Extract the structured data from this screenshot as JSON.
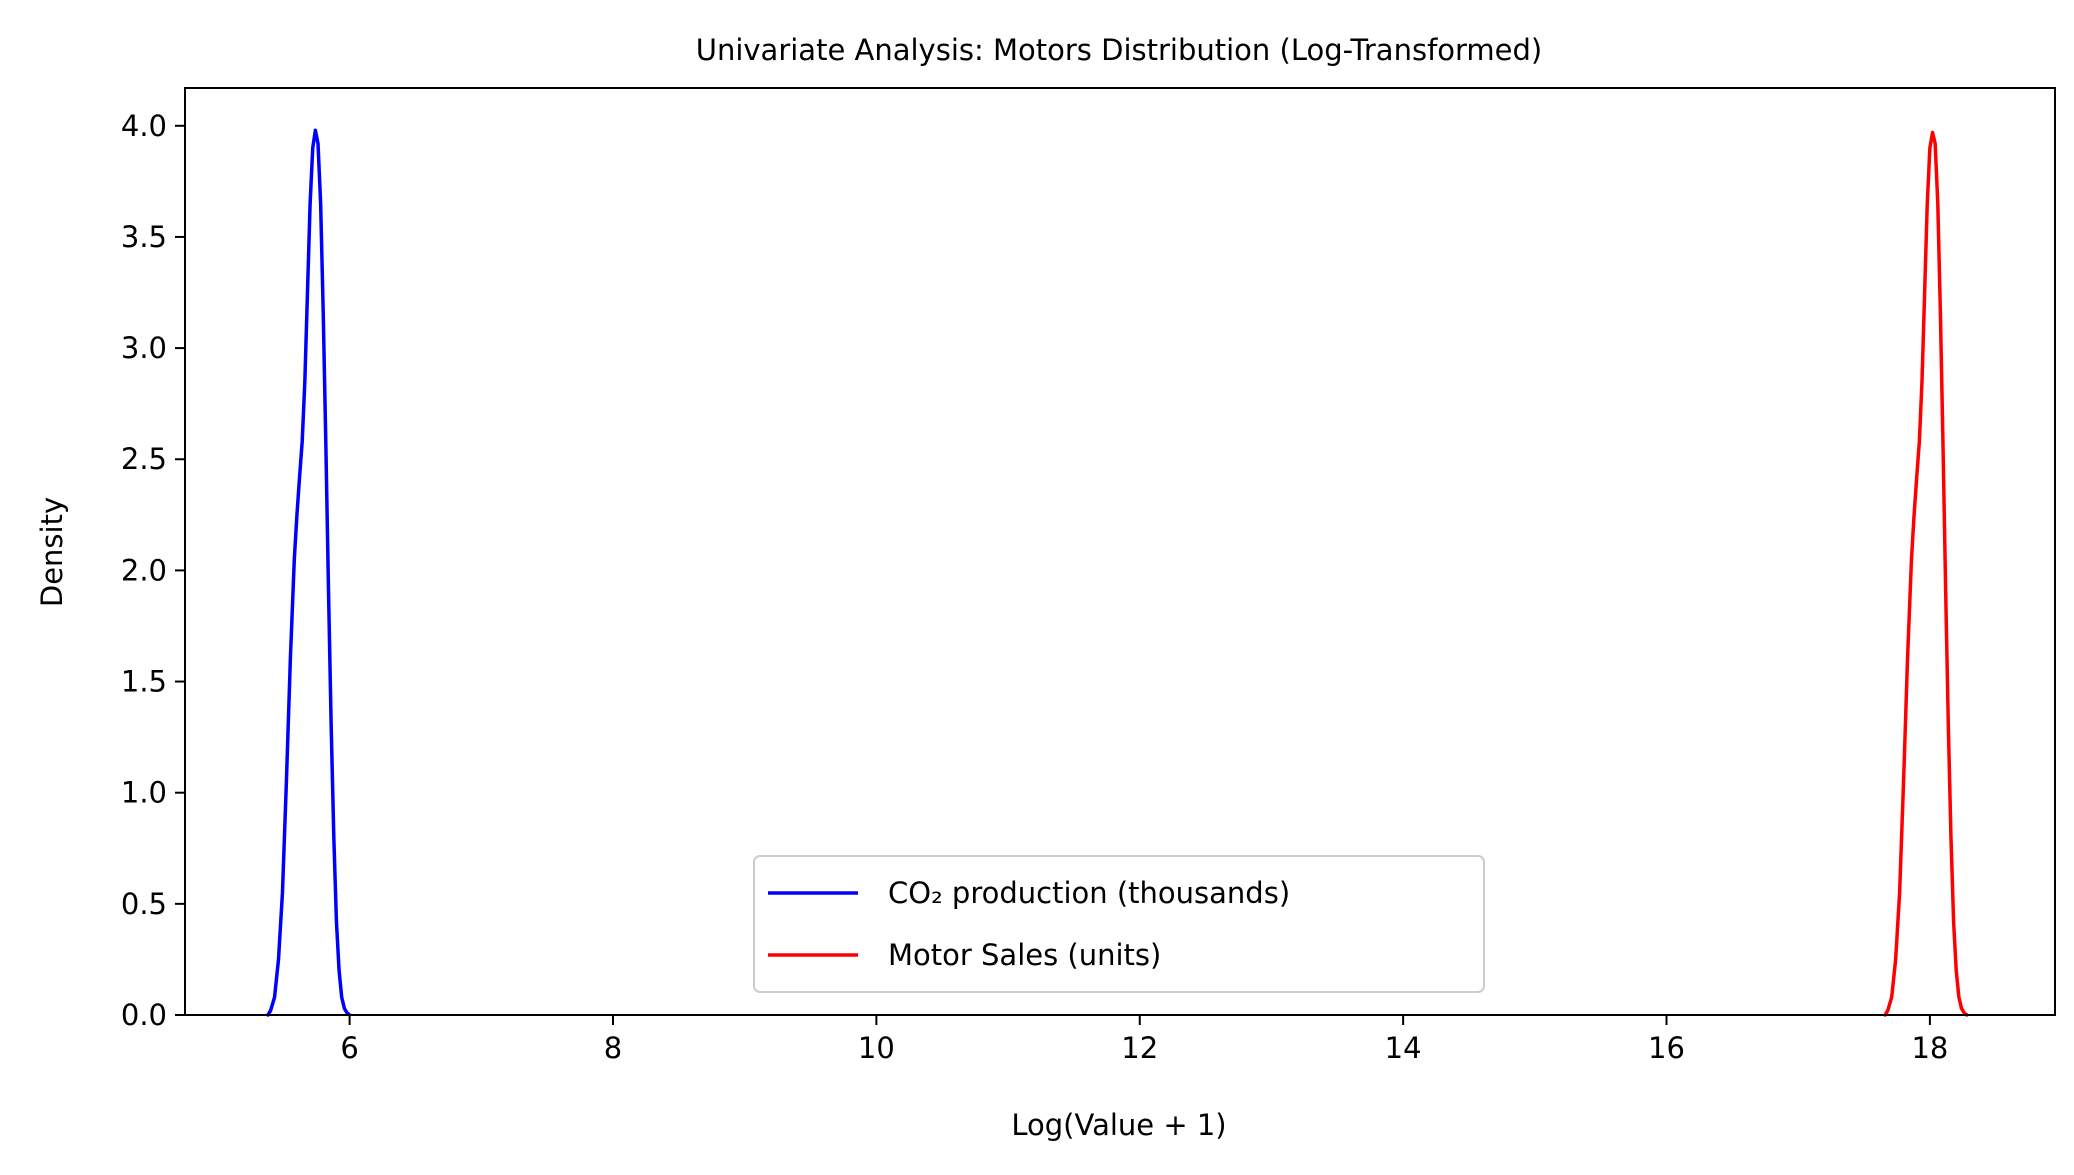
{
  "chart_data": {
    "type": "line",
    "title": "Univariate Analysis: Motors Distribution (Log-Transformed)",
    "xlabel": "Log(Value + 1)",
    "ylabel": "Density",
    "xlim": [
      4.75,
      18.95
    ],
    "ylim": [
      0.0,
      4.17
    ],
    "grid": false,
    "legend_position": "lower-center",
    "x_ticks": [
      {
        "value": 6,
        "label": "6"
      },
      {
        "value": 8,
        "label": "8"
      },
      {
        "value": 10,
        "label": "10"
      },
      {
        "value": 12,
        "label": "12"
      },
      {
        "value": 14,
        "label": "14"
      },
      {
        "value": 16,
        "label": "16"
      },
      {
        "value": 18,
        "label": "18"
      }
    ],
    "y_ticks": [
      {
        "value": 0.0,
        "label": "0.0"
      },
      {
        "value": 0.5,
        "label": "0.5"
      },
      {
        "value": 1.0,
        "label": "1.0"
      },
      {
        "value": 1.5,
        "label": "1.5"
      },
      {
        "value": 2.0,
        "label": "2.0"
      },
      {
        "value": 2.5,
        "label": "2.5"
      },
      {
        "value": 3.0,
        "label": "3.0"
      },
      {
        "value": 3.5,
        "label": "3.5"
      },
      {
        "value": 4.0,
        "label": "4.0"
      }
    ],
    "series": [
      {
        "name": "CO₂ production (thousands)",
        "color": "#0000ff",
        "points": [
          [
            5.38,
            0.0
          ],
          [
            5.4,
            0.02
          ],
          [
            5.43,
            0.08
          ],
          [
            5.46,
            0.25
          ],
          [
            5.49,
            0.55
          ],
          [
            5.52,
            1.05
          ],
          [
            5.55,
            1.6
          ],
          [
            5.58,
            2.05
          ],
          [
            5.6,
            2.25
          ],
          [
            5.62,
            2.42
          ],
          [
            5.64,
            2.58
          ],
          [
            5.66,
            2.85
          ],
          [
            5.68,
            3.25
          ],
          [
            5.7,
            3.65
          ],
          [
            5.72,
            3.9
          ],
          [
            5.74,
            3.98
          ],
          [
            5.76,
            3.92
          ],
          [
            5.78,
            3.65
          ],
          [
            5.8,
            3.15
          ],
          [
            5.82,
            2.55
          ],
          [
            5.84,
            1.9
          ],
          [
            5.86,
            1.3
          ],
          [
            5.88,
            0.8
          ],
          [
            5.9,
            0.42
          ],
          [
            5.92,
            0.2
          ],
          [
            5.94,
            0.08
          ],
          [
            5.96,
            0.03
          ],
          [
            5.98,
            0.01
          ],
          [
            6.0,
            0.0
          ]
        ]
      },
      {
        "name": "Motor Sales (units)",
        "color": "#ff0000",
        "points": [
          [
            17.66,
            0.0
          ],
          [
            17.68,
            0.02
          ],
          [
            17.71,
            0.08
          ],
          [
            17.74,
            0.25
          ],
          [
            17.77,
            0.55
          ],
          [
            17.8,
            1.05
          ],
          [
            17.83,
            1.6
          ],
          [
            17.86,
            2.05
          ],
          [
            17.88,
            2.25
          ],
          [
            17.9,
            2.42
          ],
          [
            17.92,
            2.58
          ],
          [
            17.94,
            2.85
          ],
          [
            17.96,
            3.25
          ],
          [
            17.98,
            3.65
          ],
          [
            18.0,
            3.9
          ],
          [
            18.02,
            3.97
          ],
          [
            18.04,
            3.92
          ],
          [
            18.06,
            3.65
          ],
          [
            18.08,
            3.15
          ],
          [
            18.1,
            2.55
          ],
          [
            18.12,
            1.9
          ],
          [
            18.14,
            1.3
          ],
          [
            18.16,
            0.8
          ],
          [
            18.18,
            0.42
          ],
          [
            18.2,
            0.2
          ],
          [
            18.22,
            0.08
          ],
          [
            18.24,
            0.03
          ],
          [
            18.26,
            0.01
          ],
          [
            18.28,
            0.0
          ]
        ]
      }
    ]
  }
}
